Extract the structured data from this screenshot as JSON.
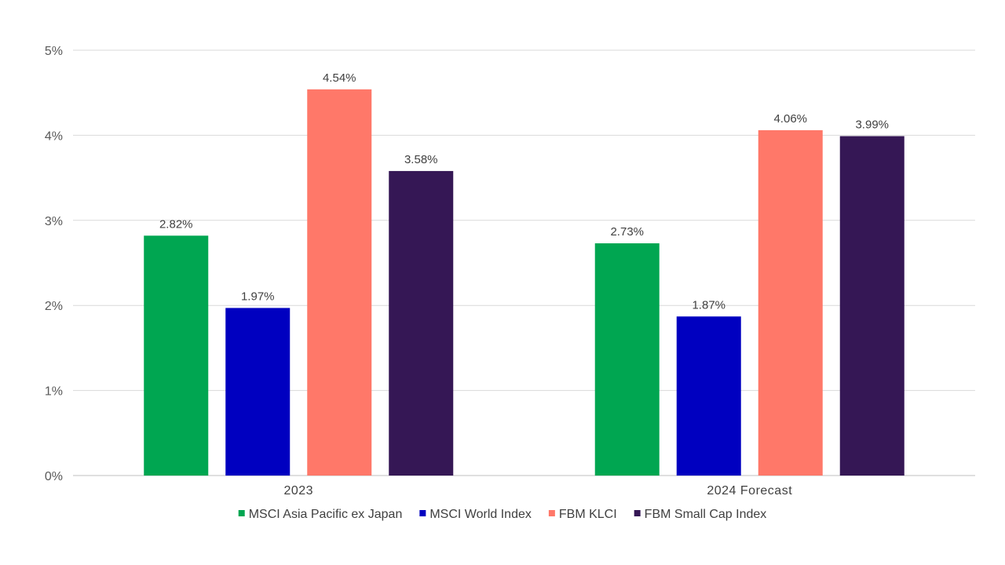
{
  "chart_data": {
    "type": "bar",
    "categories": [
      "2023",
      "2024 Forecast"
    ],
    "series": [
      {
        "name": "MSCI Asia Pacific ex Japan",
        "color": "#00A651",
        "values": [
          2.82,
          2.73
        ],
        "labels": [
          "2.82%",
          "2.73%"
        ]
      },
      {
        "name": "MSCI World Index",
        "color": "#0000C0",
        "values": [
          1.97,
          1.87
        ],
        "labels": [
          "1.97%",
          "1.87%"
        ]
      },
      {
        "name": "FBM KLCI",
        "color": "#FF7869",
        "values": [
          4.54,
          4.06
        ],
        "labels": [
          "4.54%",
          "4.06%"
        ]
      },
      {
        "name": "FBM Small Cap Index",
        "color": "#351755",
        "values": [
          3.58,
          3.99
        ],
        "labels": [
          "3.58%",
          "3.99%"
        ]
      }
    ],
    "yticks": [
      0,
      1,
      2,
      3,
      4,
      5
    ],
    "ytick_labels": [
      "0%",
      "1%",
      "2%",
      "3%",
      "4%",
      "5%"
    ],
    "ylim": [
      0,
      5
    ],
    "grid": true,
    "legend_position": "bottom",
    "title": "",
    "xlabel": "",
    "ylabel": ""
  }
}
